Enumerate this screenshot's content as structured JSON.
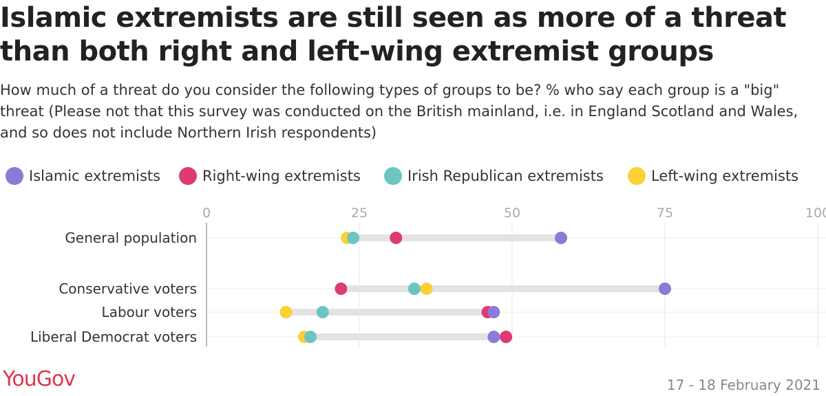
{
  "chart_data": {
    "type": "dot",
    "title": "Islamic extremists are still seen as more of a threat than both right and left-wing extremist groups",
    "subtitle": "How much of a threat do you consider the following types of groups to be? % who say each group is a \"big\" threat (Please not that this survey was conducted on the British mainland, i.e. in England Scotland and Wales, and so does not include Northern Irish respondents)",
    "xlim": [
      0,
      100
    ],
    "xticks": [
      "0",
      "25",
      "50",
      "75",
      "100"
    ],
    "grid": true,
    "legend_position": "top",
    "categories": [
      "General population",
      "Conservative voters",
      "Labour voters",
      "Liberal Democrat voters"
    ],
    "series": [
      {
        "name": "Islamic extremists",
        "color": "#8b7ad6",
        "values": [
          58,
          75,
          47,
          47
        ]
      },
      {
        "name": "Right-wing extremists",
        "color": "#dc3b73",
        "values": [
          31,
          22,
          46,
          49
        ]
      },
      {
        "name": "Irish Republican extremists",
        "color": "#6cc5c3",
        "values": [
          24,
          34,
          19,
          17
        ]
      },
      {
        "name": "Left-wing extremists",
        "color": "#fbd135",
        "values": [
          23,
          36,
          13,
          16
        ]
      }
    ]
  },
  "footer": {
    "brand": "YouGov",
    "date": "17 - 18 February 2021"
  }
}
